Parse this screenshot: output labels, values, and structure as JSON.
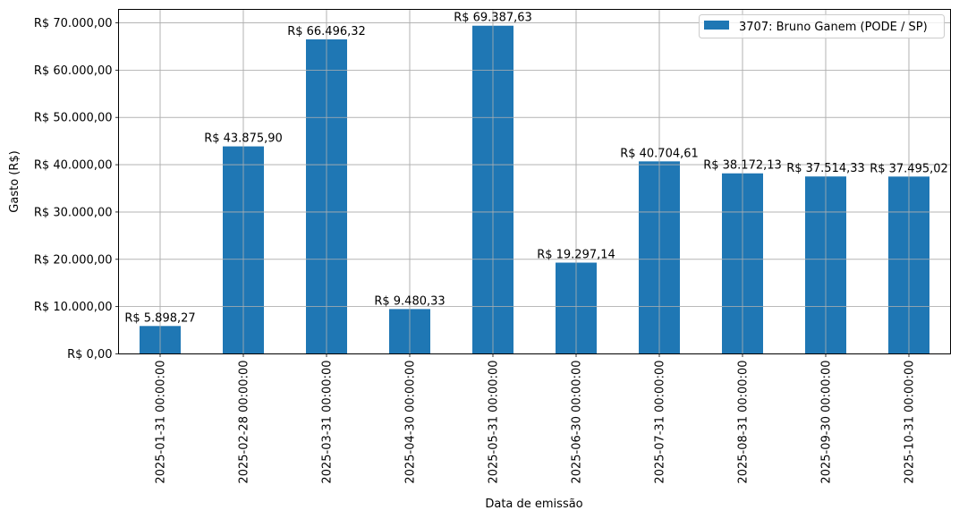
{
  "chart_data": {
    "type": "bar",
    "title": "",
    "xlabel": "Data de emissão",
    "ylabel": "Gasto (R$)",
    "ylim": [
      0,
      72800
    ],
    "grid": true,
    "legend_position": "upper right",
    "bar_color": "#1f77b4",
    "categories": [
      "2025-01-31 00:00:00",
      "2025-02-28 00:00:00",
      "2025-03-31 00:00:00",
      "2025-04-30 00:00:00",
      "2025-05-31 00:00:00",
      "2025-06-30 00:00:00",
      "2025-07-31 00:00:00",
      "2025-08-31 00:00:00",
      "2025-09-30 00:00:00",
      "2025-10-31 00:00:00"
    ],
    "series": [
      {
        "name": "3707: Bruno Ganem (PODE / SP)",
        "values": [
          5898.27,
          43875.9,
          66496.32,
          9480.33,
          69387.63,
          19297.14,
          40704.61,
          38172.13,
          37514.33,
          37495.02
        ]
      }
    ],
    "data_labels": [
      "R$ 5.898,27",
      "R$ 43.875,90",
      "R$ 66.496,32",
      "R$ 9.480,33",
      "R$ 69.387,63",
      "R$ 19.297,14",
      "R$ 40.704,61",
      "R$ 38.172,13",
      "R$ 37.514,33",
      "R$ 37.495,02"
    ],
    "y_ticks": [
      0,
      10000,
      20000,
      30000,
      40000,
      50000,
      60000,
      70000
    ],
    "y_tick_labels": [
      "R$ 0,00",
      "R$ 10.000,00",
      "R$ 20.000,00",
      "R$ 30.000,00",
      "R$ 40.000,00",
      "R$ 50.000,00",
      "R$ 60.000,00",
      "R$ 70.000,00"
    ]
  }
}
